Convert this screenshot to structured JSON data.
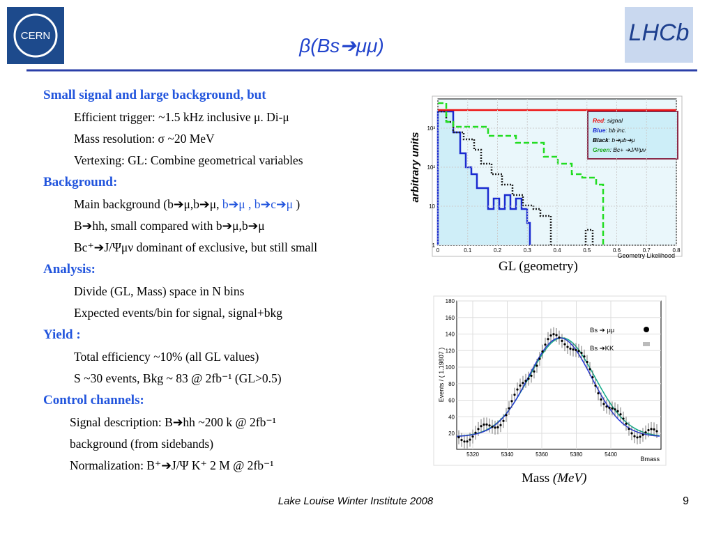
{
  "header": {
    "title": "β(Bs➔μμ)",
    "logo_left": "CERN",
    "logo_right": "LHCb"
  },
  "sections": [
    {
      "heading": "Small signal and large background, but",
      "items": [
        {
          "text": "Efficient trigger: ~1.5 kHz inclusive μ. Di-μ"
        },
        {
          "text": "Mass resolution: σ ~20 MeV"
        },
        {
          "text": "Vertexing: GL: Combine geometrical variables"
        }
      ]
    },
    {
      "heading": "Background:",
      "items": [
        {
          "parts": [
            "Main background (b➔μ,b➔μ, ",
            "b➔μ , b➔c➔μ",
            " )"
          ]
        },
        {
          "text": "B➔hh, small compared with b➔μ,b➔μ"
        },
        {
          "text": "Bc⁺➔J/Ψμν dominant of exclusive, but still small"
        }
      ]
    },
    {
      "heading": "Analysis:",
      "items": [
        {
          "text": "Divide (GL, Mass) space in N bins"
        },
        {
          "text": "Expected events/bin for  signal, signal+bkg"
        }
      ]
    },
    {
      "heading": "Yield :",
      "items": [
        {
          "text": "Total efficiency ~10% (all GL values)"
        },
        {
          "text": "S ~30 events, Bkg ~ 83  @ 2fb⁻¹ (GL>0.5)"
        }
      ]
    },
    {
      "heading": "Control channels:",
      "items": [
        {
          "text": "Signal description: B➔hh    ~200 k @ 2fb⁻¹"
        },
        {
          "text": "background (from sidebands)"
        },
        {
          "text": "Normalization: B⁺➔J/Ψ K⁺   2 M @ 2fb⁻¹"
        }
      ]
    }
  ],
  "figure_gl": {
    "ylabel": "arbitrary units",
    "xlabel": "Geometry Likelihood",
    "yticks": [
      "1",
      "10",
      "10²",
      "10³"
    ],
    "xticks": [
      "0",
      "0.1",
      "0.2",
      "0.3",
      "0.4",
      "0.5",
      "0.6",
      "0.7",
      "0.8"
    ],
    "legend": [
      [
        "Red",
        ": signal"
      ],
      [
        "Blue",
        ": bb inc."
      ],
      [
        "Black",
        ": b➔μb➔μ"
      ],
      [
        "Green",
        ": Bc+ ➔J/Ψμν"
      ]
    ],
    "caption": "GL (geometry)"
  },
  "figure_mass": {
    "ylabel": "Events / ( 1.19807 )",
    "xlabel": "Bmass",
    "yticks": [
      "20",
      "40",
      "60",
      "80",
      "100",
      "120",
      "140",
      "160",
      "180"
    ],
    "xticks": [
      "5320",
      "5340",
      "5360",
      "5380",
      "5400"
    ],
    "legend": [
      "Bs ➔ μμ",
      "Bs ➔KK"
    ],
    "caption": [
      "Mass ",
      "(MeV)"
    ]
  },
  "footer": {
    "event": "Lake Louise Winter Institute 2008",
    "page": "9"
  }
}
